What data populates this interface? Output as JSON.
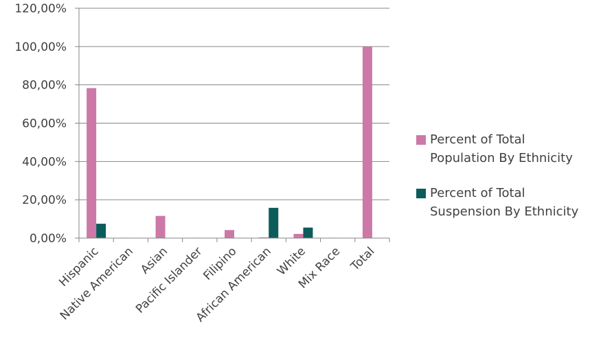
{
  "colors": {
    "population": "#cc79a7",
    "suspension": "#0d5c5c",
    "axis": "#868686",
    "grid": "#868686",
    "text": "#404040"
  },
  "legend": {
    "placement": "right",
    "items": [
      {
        "line1": "Percent of Total",
        "line2": "Population By Ethnicity"
      },
      {
        "line1": "Percent of Total",
        "line2": "Suspension By Ethnicity"
      }
    ]
  },
  "chart_data": {
    "type": "bar",
    "title": "",
    "xlabel": "",
    "ylabel": "",
    "grid": true,
    "ylim": [
      0,
      120
    ],
    "yticks": [
      0,
      20,
      40,
      60,
      80,
      100,
      120
    ],
    "ytick_labels": [
      "0,00%",
      "20,00%",
      "40,00%",
      "60,00%",
      "80,00%",
      "100,00%",
      "120,00%"
    ],
    "categories": [
      "Hispanic",
      "Native American",
      "Asian",
      "Pacific Islander",
      "Filipino",
      "African American",
      "White",
      "Mix Race",
      "Total"
    ],
    "series": [
      {
        "name": "Percent of Total Population By Ethnicity",
        "values": [
          78.3,
          0.2,
          11.6,
          0.2,
          4.2,
          0.4,
          2.2,
          0.2,
          100
        ]
      },
      {
        "name": "Percent of Total Suspension By Ethnicity",
        "values": [
          7.5,
          0,
          0,
          0,
          0,
          15.8,
          5.5,
          0,
          0
        ]
      }
    ]
  }
}
